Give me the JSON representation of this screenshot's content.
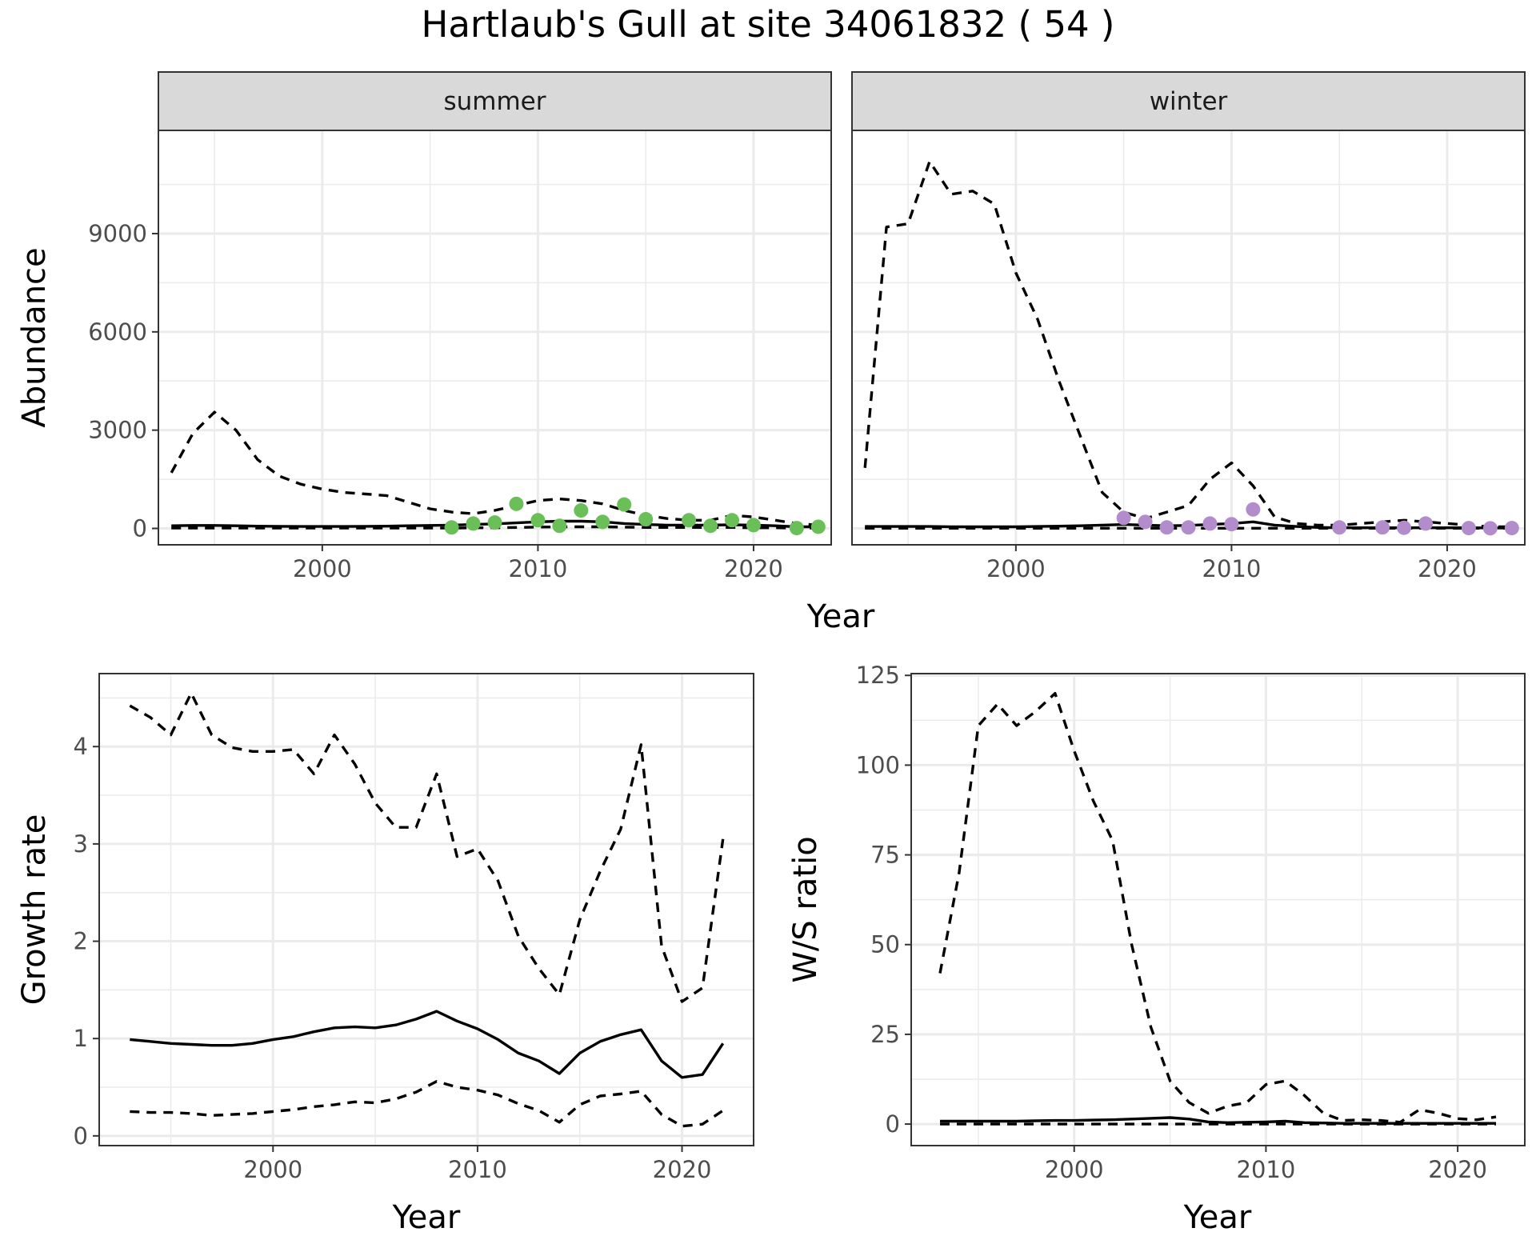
{
  "title": "Hartlaub's Gull at site 34061832 ( 54 )",
  "chart_data": [
    {
      "id": "abundance",
      "type": "line",
      "facets": [
        "summer",
        "winter"
      ],
      "xlabel": "Year",
      "ylabel": "Abundance",
      "xlim": [
        1992.4,
        2023.6
      ],
      "ylim": [
        -500,
        12150
      ],
      "xticks": [
        2000,
        2010,
        2020
      ],
      "yticks": [
        0,
        3000,
        6000,
        9000
      ],
      "grid": true,
      "panels": [
        {
          "facet": "summer",
          "point_color": "#6bbf59",
          "mean": {
            "x": [
              1993,
              1994,
              1995,
              1996,
              1997,
              1998,
              1999,
              2000,
              2001,
              2002,
              2003,
              2004,
              2005,
              2006,
              2007,
              2008,
              2009,
              2010,
              2011,
              2012,
              2013,
              2014,
              2015,
              2016,
              2017,
              2018,
              2019,
              2020,
              2021,
              2022,
              2023
            ],
            "y": [
              80,
              90,
              90,
              80,
              70,
              65,
              60,
              60,
              60,
              65,
              70,
              80,
              90,
              100,
              120,
              140,
              170,
              200,
              220,
              220,
              200,
              150,
              120,
              100,
              100,
              100,
              110,
              100,
              80,
              50,
              50
            ]
          },
          "lower": {
            "x": [
              1993,
              1994,
              1995,
              1996,
              1997,
              1998,
              1999,
              2000,
              2001,
              2002,
              2003,
              2004,
              2005,
              2006,
              2007,
              2008,
              2009,
              2010,
              2011,
              2012,
              2013,
              2014,
              2015,
              2016,
              2017,
              2018,
              2019,
              2020,
              2021,
              2022,
              2023
            ],
            "y": [
              10,
              10,
              10,
              10,
              10,
              10,
              10,
              10,
              10,
              10,
              10,
              10,
              10,
              10,
              20,
              20,
              30,
              40,
              50,
              50,
              50,
              40,
              30,
              30,
              30,
              30,
              30,
              20,
              20,
              10,
              10
            ]
          },
          "upper": {
            "x": [
              1993,
              1994,
              1995,
              1996,
              1997,
              1998,
              1999,
              2000,
              2001,
              2002,
              2003,
              2004,
              2005,
              2006,
              2007,
              2008,
              2009,
              2010,
              2011,
              2012,
              2013,
              2014,
              2015,
              2016,
              2017,
              2018,
              2019,
              2020,
              2021,
              2022,
              2023
            ],
            "y": [
              1700,
              2900,
              3550,
              3000,
              2100,
              1600,
              1350,
              1200,
              1100,
              1050,
              1000,
              800,
              600,
              500,
              450,
              550,
              700,
              850,
              900,
              850,
              750,
              550,
              400,
              300,
              250,
              250,
              400,
              350,
              250,
              150,
              100
            ]
          },
          "points": {
            "x": [
              2006,
              2007,
              2008,
              2009,
              2010,
              2011,
              2012,
              2013,
              2014,
              2015,
              2017,
              2018,
              2019,
              2020,
              2022,
              2023
            ],
            "y": [
              30,
              150,
              180,
              750,
              250,
              80,
              550,
              200,
              730,
              280,
              250,
              80,
              250,
              100,
              10,
              50
            ]
          }
        },
        {
          "facet": "winter",
          "point_color": "#b38ccc",
          "mean": {
            "x": [
              1993,
              1994,
              1995,
              1996,
              1997,
              1998,
              1999,
              2000,
              2001,
              2002,
              2003,
              2004,
              2005,
              2006,
              2007,
              2008,
              2009,
              2010,
              2011,
              2012,
              2013,
              2014,
              2015,
              2016,
              2017,
              2018,
              2019,
              2020,
              2021,
              2022,
              2023
            ],
            "y": [
              60,
              60,
              60,
              60,
              50,
              50,
              50,
              50,
              60,
              70,
              80,
              100,
              120,
              100,
              80,
              90,
              120,
              150,
              200,
              100,
              60,
              30,
              20,
              20,
              20,
              20,
              20,
              20,
              20,
              15,
              10
            ]
          },
          "lower": {
            "x": [
              1993,
              1994,
              1995,
              1996,
              1997,
              1998,
              1999,
              2000,
              2001,
              2002,
              2003,
              2004,
              2005,
              2006,
              2007,
              2008,
              2009,
              2010,
              2011,
              2012,
              2013,
              2014,
              2015,
              2016,
              2017,
              2018,
              2019,
              2020,
              2021,
              2022,
              2023
            ],
            "y": [
              5,
              5,
              5,
              5,
              5,
              5,
              5,
              5,
              5,
              5,
              5,
              5,
              5,
              5,
              5,
              5,
              5,
              5,
              5,
              5,
              5,
              5,
              5,
              5,
              5,
              5,
              5,
              5,
              5,
              5,
              5
            ]
          },
          "upper": {
            "x": [
              1993,
              1994,
              1995,
              1996,
              1997,
              1998,
              1999,
              2000,
              2001,
              2002,
              2003,
              2004,
              2005,
              2006,
              2007,
              2008,
              2009,
              2010,
              2011,
              2012,
              2013,
              2014,
              2015,
              2016,
              2017,
              2018,
              2019,
              2020,
              2021,
              2022,
              2023
            ],
            "y": [
              1850,
              9200,
              9300,
              11200,
              10200,
              10300,
              9900,
              7800,
              6400,
              4500,
              2800,
              1100,
              500,
              300,
              500,
              700,
              1500,
              2000,
              1300,
              350,
              150,
              100,
              100,
              150,
              200,
              250,
              200,
              150,
              100,
              50,
              50
            ]
          },
          "points": {
            "x": [
              2005,
              2006,
              2007,
              2008,
              2009,
              2010,
              2011,
              2015,
              2017,
              2018,
              2019,
              2021,
              2022,
              2023
            ],
            "y": [
              320,
              200,
              30,
              30,
              150,
              130,
              580,
              30,
              30,
              20,
              150,
              10,
              5,
              10
            ]
          }
        }
      ]
    },
    {
      "id": "growth",
      "type": "line",
      "xlabel": "Year",
      "ylabel": "Growth rate",
      "xlim": [
        1991.5,
        2023.5
      ],
      "ylim": [
        -0.1,
        4.75
      ],
      "xticks": [
        2000,
        2010,
        2020
      ],
      "yticks": [
        0,
        1,
        2,
        3,
        4
      ],
      "grid": true,
      "mean": {
        "x": [
          1993,
          1994,
          1995,
          1996,
          1997,
          1998,
          1999,
          2000,
          2001,
          2002,
          2003,
          2004,
          2005,
          2006,
          2007,
          2008,
          2009,
          2010,
          2011,
          2012,
          2013,
          2014,
          2015,
          2016,
          2017,
          2018,
          2019,
          2020,
          2021,
          2022
        ],
        "y": [
          0.99,
          0.97,
          0.95,
          0.94,
          0.93,
          0.93,
          0.95,
          0.99,
          1.02,
          1.07,
          1.11,
          1.12,
          1.11,
          1.14,
          1.2,
          1.28,
          1.18,
          1.1,
          0.99,
          0.85,
          0.77,
          0.64,
          0.85,
          0.97,
          1.04,
          1.09,
          0.77,
          0.6,
          0.63,
          0.95
        ]
      },
      "lower": {
        "x": [
          1993,
          1994,
          1995,
          1996,
          1997,
          1998,
          1999,
          2000,
          2001,
          2002,
          2003,
          2004,
          2005,
          2006,
          2007,
          2008,
          2009,
          2010,
          2011,
          2012,
          2013,
          2014,
          2015,
          2016,
          2017,
          2018,
          2019,
          2020,
          2021,
          2022
        ],
        "y": [
          0.25,
          0.24,
          0.24,
          0.23,
          0.21,
          0.22,
          0.23,
          0.25,
          0.27,
          0.3,
          0.32,
          0.35,
          0.34,
          0.38,
          0.45,
          0.56,
          0.5,
          0.47,
          0.42,
          0.33,
          0.26,
          0.14,
          0.32,
          0.41,
          0.43,
          0.46,
          0.22,
          0.1,
          0.12,
          0.26
        ]
      },
      "upper": {
        "x": [
          1993,
          1994,
          1995,
          1996,
          1997,
          1998,
          1999,
          2000,
          2001,
          2002,
          2003,
          2004,
          2005,
          2006,
          2007,
          2008,
          2009,
          2010,
          2011,
          2012,
          2013,
          2014,
          2015,
          2016,
          2017,
          2018,
          2019,
          2020,
          2021,
          2022
        ],
        "y": [
          4.42,
          4.3,
          4.12,
          4.55,
          4.12,
          3.99,
          3.95,
          3.95,
          3.97,
          3.72,
          4.12,
          3.82,
          3.42,
          3.17,
          3.17,
          3.72,
          2.87,
          2.95,
          2.62,
          2.05,
          1.72,
          1.45,
          2.22,
          2.72,
          3.15,
          4.02,
          1.95,
          1.38,
          1.52,
          3.05
        ]
      }
    },
    {
      "id": "ratio",
      "type": "line",
      "xlabel": "Year",
      "ylabel": "W/S ratio",
      "xlim": [
        1991.5,
        2023.5
      ],
      "ylim": [
        -6,
        125.5
      ],
      "xticks": [
        2000,
        2010,
        2020
      ],
      "yticks": [
        0,
        25,
        50,
        75,
        100,
        125
      ],
      "grid": true,
      "mean": {
        "x": [
          1993,
          1994,
          1995,
          1996,
          1997,
          1998,
          1999,
          2000,
          2001,
          2002,
          2003,
          2004,
          2005,
          2006,
          2007,
          2008,
          2009,
          2010,
          2011,
          2012,
          2013,
          2014,
          2015,
          2016,
          2017,
          2018,
          2019,
          2020,
          2021,
          2022
        ],
        "y": [
          0.8,
          0.8,
          0.8,
          0.8,
          0.8,
          0.9,
          1.0,
          1.0,
          1.1,
          1.2,
          1.4,
          1.6,
          1.8,
          1.4,
          0.6,
          0.4,
          0.5,
          0.6,
          0.8,
          0.4,
          0.3,
          0.2,
          0.2,
          0.2,
          0.2,
          0.2,
          0.2,
          0.2,
          0.2,
          0.2
        ]
      },
      "lower": {
        "x": [
          1993,
          1994,
          1995,
          1996,
          1997,
          1998,
          1999,
          2000,
          2001,
          2002,
          2003,
          2004,
          2005,
          2006,
          2007,
          2008,
          2009,
          2010,
          2011,
          2012,
          2013,
          2014,
          2015,
          2016,
          2017,
          2018,
          2019,
          2020,
          2021,
          2022
        ],
        "y": [
          0,
          0,
          0,
          0,
          0,
          0,
          0,
          0,
          0,
          0,
          0,
          0,
          0,
          0,
          0,
          0,
          0,
          0,
          0,
          0,
          0,
          0,
          0,
          0,
          0,
          0,
          0,
          0,
          0,
          0
        ]
      },
      "upper": {
        "x": [
          1993,
          1994,
          1995,
          1996,
          1997,
          1998,
          1999,
          2000,
          2001,
          2002,
          2003,
          2004,
          2005,
          2006,
          2007,
          2008,
          2009,
          2010,
          2011,
          2012,
          2013,
          2014,
          2015,
          2016,
          2017,
          2018,
          2019,
          2020,
          2021,
          2022
        ],
        "y": [
          42,
          70,
          111,
          117,
          111,
          115,
          120,
          104,
          90,
          79,
          50,
          27,
          12,
          6,
          3,
          5,
          6,
          11,
          12,
          8,
          3,
          1,
          1.2,
          1,
          0.5,
          4,
          3,
          1.5,
          1.2,
          2
        ]
      }
    }
  ]
}
